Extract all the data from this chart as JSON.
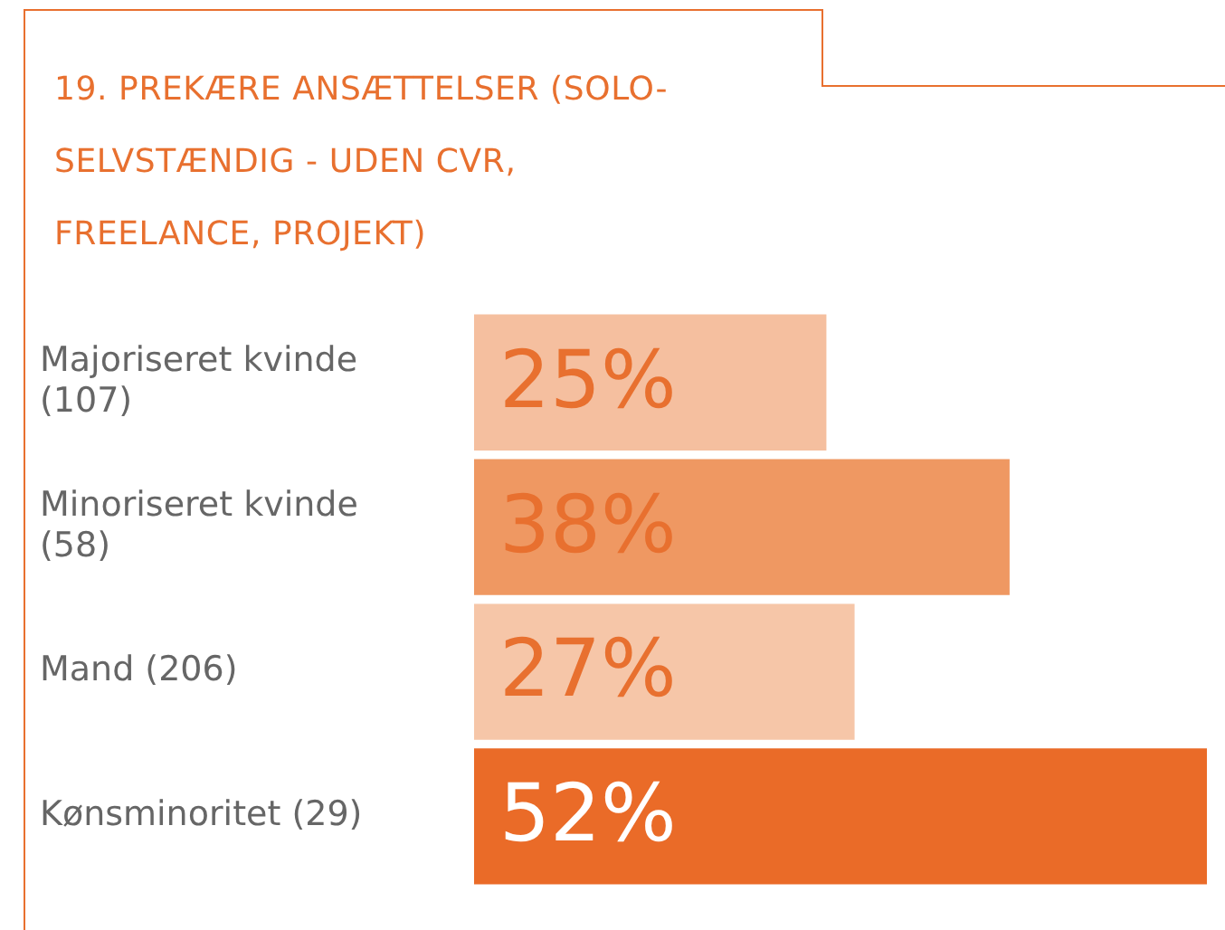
{
  "chart_data": {
    "type": "bar",
    "orientation": "horizontal",
    "title": "19. PREKÆRE ANSÆTTELSER (SOLO-SELVSTÆNDIG - UDEN CVR, FREELANCE, PROJEKT)",
    "categories": [
      "Majoriseret kvinde (107)",
      "Minoriseret kvinde (58)",
      "Mand (206)",
      "Kønsminoritet (29)"
    ],
    "values": [
      25,
      38,
      27,
      52
    ],
    "colors": [
      "#f5bf9f",
      "#ef9862",
      "#f6c6a8",
      "#ea6b28"
    ],
    "value_labels": [
      "25%",
      "38%",
      "27%",
      "52%"
    ],
    "legend": false
  }
}
